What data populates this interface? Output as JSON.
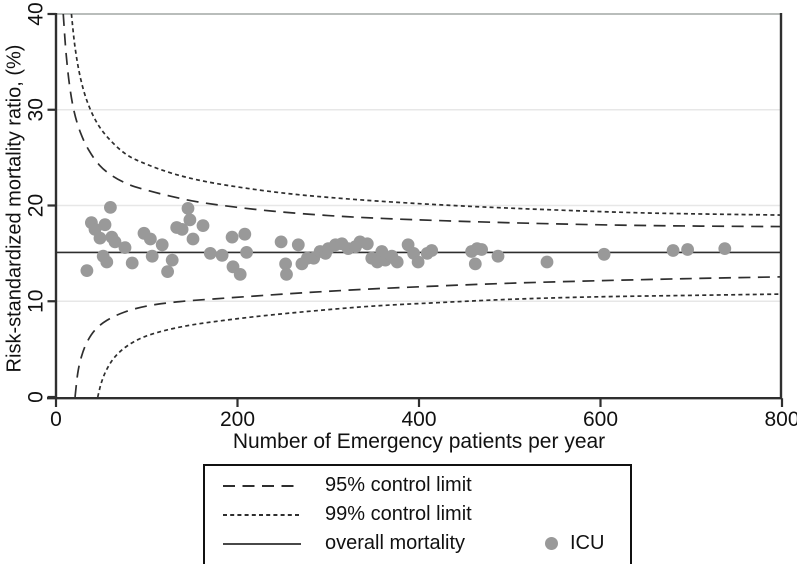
{
  "figure": {
    "bg_color": "#ffffff",
    "axis_color": "#2f2f2f",
    "grid_color": "#e7e7e7",
    "top_grid_color": "#b9bdbb",
    "curve_color": "#2e2e2e",
    "dot_color": "#999999",
    "text_color": "#111111"
  },
  "chart_data": {
    "type": "scatter",
    "subtype": "funnel-plot",
    "title": "",
    "xlabel": "Number of Emergency patients per year",
    "ylabel": "Risk-standardized mortality ratio, (%)",
    "xlim": [
      0,
      800
    ],
    "ylim": [
      0,
      40
    ],
    "xticks": [
      0,
      200,
      400,
      600,
      800
    ],
    "yticks": [
      0,
      10,
      20,
      30,
      40
    ],
    "grid": "horizontal",
    "legend_position": "bottom-center",
    "overall_mortality": 15.1,
    "series": [
      {
        "name": "95% control limit",
        "type": "limit-pair",
        "dash": "long",
        "upper": [
          [
            8,
            40
          ],
          [
            11,
            36
          ],
          [
            15,
            32.5
          ],
          [
            20,
            29.8
          ],
          [
            27,
            27.6
          ],
          [
            36,
            25.8
          ],
          [
            48,
            24.2
          ],
          [
            62,
            23.1
          ],
          [
            80,
            22.2
          ],
          [
            100,
            21.6
          ],
          [
            125,
            21.0
          ],
          [
            155,
            20.4
          ],
          [
            192,
            19.9
          ],
          [
            240,
            19.4
          ],
          [
            300,
            18.95
          ],
          [
            360,
            18.65
          ],
          [
            430,
            18.4
          ],
          [
            520,
            18.15
          ],
          [
            620,
            17.95
          ],
          [
            710,
            17.85
          ],
          [
            800,
            17.8
          ]
        ],
        "lower": [
          [
            21,
            0
          ],
          [
            24,
            2.5
          ],
          [
            28,
            4.2
          ],
          [
            34,
            5.7
          ],
          [
            43,
            7.0
          ],
          [
            56,
            8.0
          ],
          [
            75,
            8.85
          ],
          [
            100,
            9.5
          ],
          [
            135,
            9.95
          ],
          [
            175,
            10.25
          ],
          [
            220,
            10.55
          ],
          [
            275,
            10.9
          ],
          [
            340,
            11.25
          ],
          [
            410,
            11.55
          ],
          [
            490,
            11.85
          ],
          [
            580,
            12.1
          ],
          [
            690,
            12.35
          ],
          [
            800,
            12.55
          ]
        ]
      },
      {
        "name": "99% control limit",
        "type": "limit-pair",
        "dash": "short",
        "upper": [
          [
            17,
            40
          ],
          [
            21,
            36.5
          ],
          [
            27,
            33.3
          ],
          [
            35,
            30.7
          ],
          [
            46,
            28.5
          ],
          [
            60,
            26.8
          ],
          [
            78,
            25.3
          ],
          [
            100,
            24.3
          ],
          [
            130,
            23.3
          ],
          [
            165,
            22.5
          ],
          [
            210,
            21.8
          ],
          [
            260,
            21.2
          ],
          [
            320,
            20.7
          ],
          [
            390,
            20.25
          ],
          [
            470,
            19.85
          ],
          [
            560,
            19.5
          ],
          [
            660,
            19.2
          ],
          [
            800,
            19.0
          ]
        ],
        "lower": [
          [
            46,
            0
          ],
          [
            50,
            1.5
          ],
          [
            56,
            2.9
          ],
          [
            65,
            4.2
          ],
          [
            78,
            5.3
          ],
          [
            95,
            6.2
          ],
          [
            118,
            6.9
          ],
          [
            148,
            7.5
          ],
          [
            185,
            8.0
          ],
          [
            230,
            8.5
          ],
          [
            285,
            9.0
          ],
          [
            350,
            9.5
          ],
          [
            420,
            9.85
          ],
          [
            500,
            10.2
          ],
          [
            590,
            10.45
          ],
          [
            690,
            10.6
          ],
          [
            800,
            10.75
          ]
        ]
      },
      {
        "name": "overall mortality",
        "type": "hline",
        "value": 15.1
      },
      {
        "name": "ICU",
        "type": "scatter",
        "points": [
          [
            34,
            13.2
          ],
          [
            39,
            18.2
          ],
          [
            43,
            17.5
          ],
          [
            48.5,
            16.6
          ],
          [
            52,
            14.7
          ],
          [
            54,
            18.0
          ],
          [
            56,
            14.1
          ],
          [
            60,
            19.8
          ],
          [
            61.5,
            16.7
          ],
          [
            65,
            16.2
          ],
          [
            76,
            15.6
          ],
          [
            84,
            14.0
          ],
          [
            97,
            17.1
          ],
          [
            104,
            16.5
          ],
          [
            106,
            14.7
          ],
          [
            117,
            15.9
          ],
          [
            123,
            13.1
          ],
          [
            128,
            14.3
          ],
          [
            133,
            17.7
          ],
          [
            139,
            17.5
          ],
          [
            145.5,
            19.7
          ],
          [
            147.5,
            18.5
          ],
          [
            151,
            16.5
          ],
          [
            162,
            17.9
          ],
          [
            170,
            15.0
          ],
          [
            183,
            14.8
          ],
          [
            194,
            16.7
          ],
          [
            195,
            13.6
          ],
          [
            203,
            12.8
          ],
          [
            208,
            17.0
          ],
          [
            210,
            15.1
          ],
          [
            248,
            16.2
          ],
          [
            253,
            13.9
          ],
          [
            254,
            12.8
          ],
          [
            267,
            15.9
          ],
          [
            271,
            13.9
          ],
          [
            277,
            14.5
          ],
          [
            284,
            14.5
          ],
          [
            291,
            15.2
          ],
          [
            297,
            15.0
          ],
          [
            300,
            15.5
          ],
          [
            308,
            15.9
          ],
          [
            315,
            16.0
          ],
          [
            322,
            15.5
          ],
          [
            330,
            15.7
          ],
          [
            335,
            16.2
          ],
          [
            343,
            16.0
          ],
          [
            348,
            14.5
          ],
          [
            354,
            14.1
          ],
          [
            359,
            15.2
          ],
          [
            363,
            14.3
          ],
          [
            370,
            14.7
          ],
          [
            376,
            14.1
          ],
          [
            388,
            15.9
          ],
          [
            394,
            15.0
          ],
          [
            399,
            14.1
          ],
          [
            409,
            15.0
          ],
          [
            414,
            15.3
          ],
          [
            458,
            15.2
          ],
          [
            462,
            13.9
          ],
          [
            464,
            15.5
          ],
          [
            469,
            15.4
          ],
          [
            487,
            14.7
          ],
          [
            541,
            14.1
          ],
          [
            604,
            14.9
          ],
          [
            680,
            15.3
          ],
          [
            696,
            15.4
          ],
          [
            737,
            15.5
          ]
        ]
      }
    ]
  }
}
